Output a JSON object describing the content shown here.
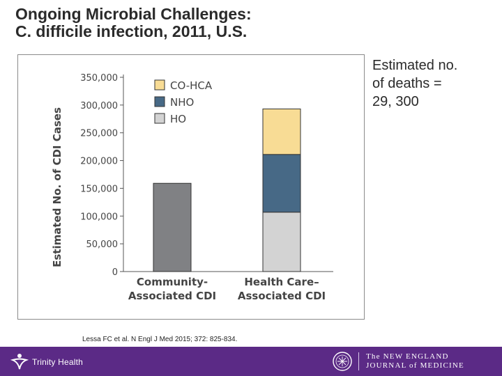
{
  "slide": {
    "title_line1": "Ongoing Microbial Challenges:",
    "title_line2": "C. difficile infection, 2011, U.S.",
    "note_line1": "Estimated no.",
    "note_line2": "of deaths =",
    "note_line3": "29, 300",
    "citation": "Lessa FC et al. N Engl J Med 2015; 372: 825-834."
  },
  "footer": {
    "left_logo": "Trinity Health",
    "right_logo_line1": "The NEW ENGLAND",
    "right_logo_line2": "JOURNAL of MEDICINE"
  },
  "colors": {
    "footer_bg": "#5b2a86",
    "co_hca": "#f8dc95",
    "nho": "#476986",
    "ho": "#d3d3d3",
    "community": "#808184"
  },
  "chart_data": {
    "type": "bar",
    "stacked": true,
    "ylabel": "Estimated No. of CDI Cases",
    "ylim": [
      0,
      350000
    ],
    "yticks": [
      0,
      50000,
      100000,
      150000,
      200000,
      250000,
      300000,
      350000
    ],
    "ytick_labels": [
      "0",
      "50,000",
      "100,000",
      "150,000",
      "200,000",
      "250,000",
      "300,000",
      "350,000"
    ],
    "categories": [
      {
        "line1": "Community-",
        "line2": "Associated CDI"
      },
      {
        "line1": "Health Care–",
        "line2": "Associated CDI"
      }
    ],
    "series": [
      {
        "name": "Community",
        "color": "#808184",
        "values": [
          159000,
          0
        ],
        "in_legend": false
      },
      {
        "name": "HO",
        "color": "#d3d3d3",
        "values": [
          0,
          107000
        ],
        "in_legend": true
      },
      {
        "name": "NHO",
        "color": "#476986",
        "values": [
          0,
          104000
        ],
        "in_legend": true
      },
      {
        "name": "CO-HCA",
        "color": "#f8dc95",
        "values": [
          0,
          82000
        ],
        "in_legend": true
      }
    ],
    "legend_order": [
      "CO-HCA",
      "NHO",
      "HO"
    ],
    "legend_position": "top-left"
  }
}
